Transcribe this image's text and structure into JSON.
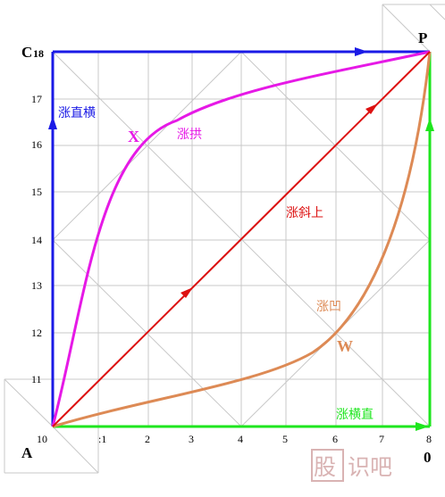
{
  "colors": {
    "blue": "#1a1ae6",
    "green": "#1ee61e",
    "magenta": "#e619e6",
    "red": "#dd1111",
    "orange": "#dd8a55",
    "grid": "#c8c8c8",
    "watermark": "#d9b3b3"
  },
  "corners": {
    "top_left": "C",
    "top_left_value": "18",
    "top_right": "P",
    "bottom_left": "A",
    "bottom_right": "0"
  },
  "x_ticks": [
    "10",
    ":1",
    "2",
    "3",
    "4",
    "5",
    "6",
    "7",
    "8"
  ],
  "y_ticks": [
    "11",
    "12",
    "13",
    "14",
    "15",
    "16",
    "17"
  ],
  "paths": {
    "blue_label": "涨直横",
    "green_label": "涨横直",
    "magenta_label": "涨拱",
    "red_label": "涨斜上",
    "orange_label": "涨凹"
  },
  "points": {
    "x_label": "X",
    "w_label": "W"
  },
  "watermark": {
    "char1": "股",
    "rest": "识吧"
  }
}
